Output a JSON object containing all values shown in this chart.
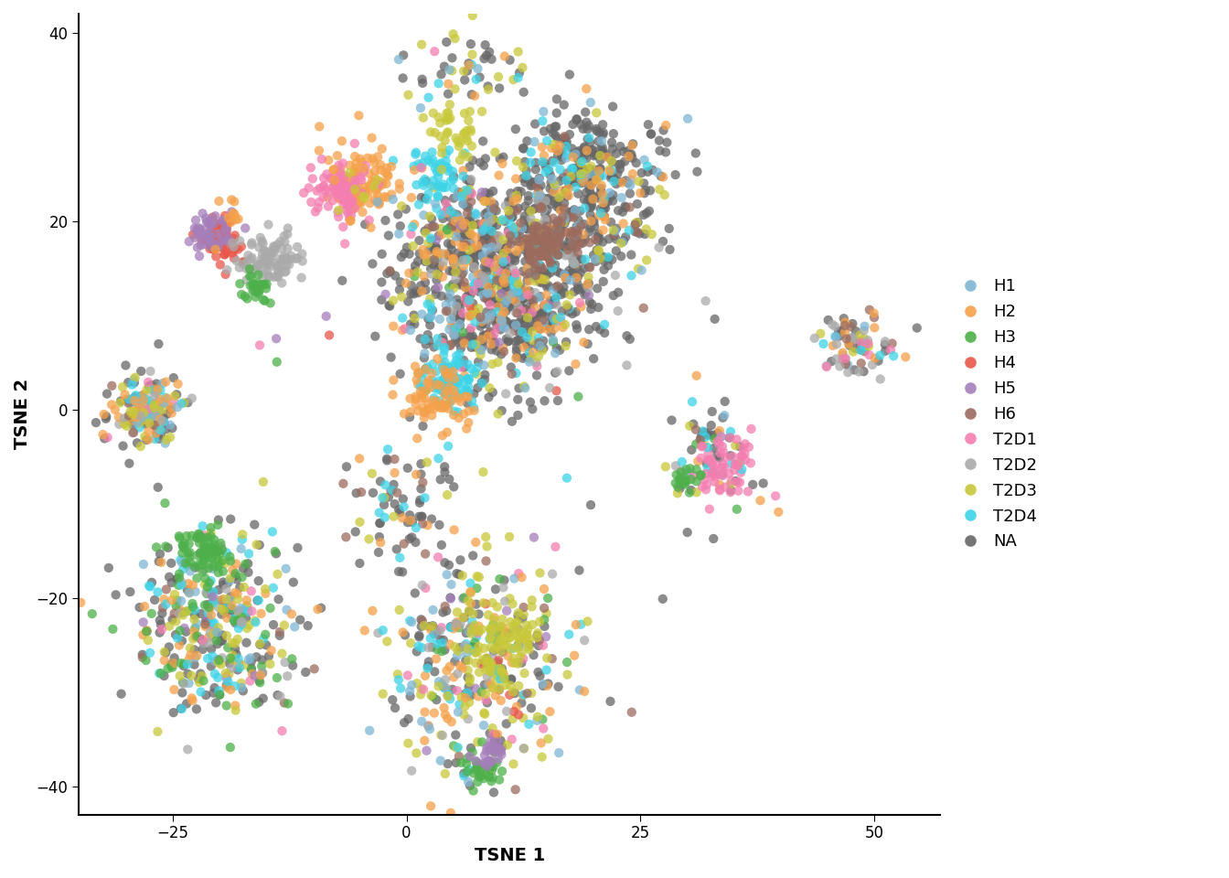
{
  "title": "",
  "xlabel": "TSNE 1",
  "ylabel": "TSNE 2",
  "xlim": [
    -35,
    57
  ],
  "ylim": [
    -43,
    42
  ],
  "xticks": [
    -25,
    0,
    25,
    50
  ],
  "yticks": [
    -40,
    -20,
    0,
    20,
    40
  ],
  "legend_labels": [
    "H1",
    "H2",
    "H3",
    "H4",
    "H5",
    "H6",
    "T2D1",
    "T2D2",
    "T2D3",
    "T2D4",
    "NA"
  ],
  "colors": {
    "H1": "#7eb6d4",
    "H2": "#f5a14a",
    "H3": "#4db04a",
    "H4": "#e8574a",
    "H5": "#a57eba",
    "H6": "#9c6b5e",
    "T2D1": "#f47eb0",
    "T2D2": "#aaaaaa",
    "T2D3": "#c8c83a",
    "T2D4": "#3dd4e8",
    "NA": "#666666"
  },
  "point_size": 55,
  "alpha": 0.75,
  "background_color": "#ffffff",
  "seed": 42
}
